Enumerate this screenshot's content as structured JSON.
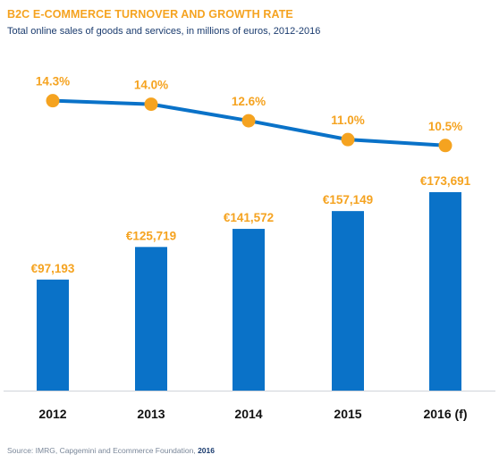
{
  "title": "B2C E-COMMERCE TURNOVER AND GROWTH RATE",
  "subtitle": "Total online sales of goods and services, in millions of euros, 2012-2016",
  "source_text": "Source: IMRG, Capgemini and Ecommerce Foundation, ",
  "source_year": "2016",
  "colors": {
    "bar": "#0a72c8",
    "line": "#0a72c8",
    "marker": "#f5a320",
    "label": "#f5a320",
    "axis_text": "#111111",
    "title": "#f5a320",
    "subtitle": "#1a3b6e"
  },
  "chart_data": {
    "type": "bar+line",
    "categories": [
      "2012",
      "2013",
      "2014",
      "2015",
      "2016 (f)"
    ],
    "series": [
      {
        "type": "bar",
        "values": [
          97193,
          125719,
          141572,
          157149,
          173691
        ],
        "labels": [
          "€97,193",
          "€125,719",
          "€141,572",
          "€157,149",
          "€173,691"
        ]
      },
      {
        "type": "line",
        "values": [
          14.3,
          14.0,
          12.6,
          11.0,
          10.5
        ],
        "labels": [
          "14.3%",
          "14.0%",
          "12.6%",
          "11.0%",
          "10.5%"
        ]
      }
    ],
    "bar_ylim": [
      0,
      205000
    ],
    "line_ylim": [
      9.8,
      14.5
    ],
    "grid": false,
    "legend": "none"
  }
}
